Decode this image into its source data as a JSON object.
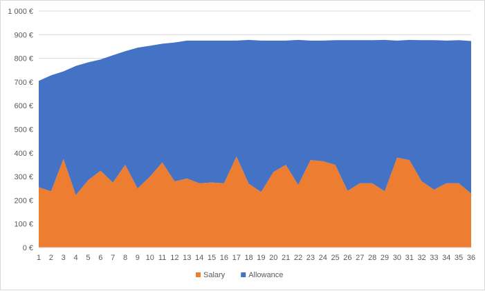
{
  "chart_data": {
    "type": "area",
    "stacked": true,
    "x": [
      "1",
      "2",
      "3",
      "4",
      "5",
      "6",
      "7",
      "8",
      "9",
      "10",
      "11",
      "12",
      "13",
      "14",
      "15",
      "16",
      "17",
      "18",
      "19",
      "20",
      "21",
      "22",
      "23",
      "24",
      "25",
      "26",
      "27",
      "28",
      "29",
      "30",
      "31",
      "32",
      "33",
      "34",
      "35",
      "36"
    ],
    "ylim": [
      0,
      1000
    ],
    "yticks": [
      0,
      100,
      200,
      300,
      400,
      500,
      600,
      700,
      800,
      900,
      1000
    ],
    "ytick_labels": [
      "0 €",
      "100 €",
      "200 €",
      "300 €",
      "400 €",
      "500 €",
      "600 €",
      "700 €",
      "800 €",
      "900 €",
      "1 000 €"
    ],
    "grid": true,
    "legend_position": "bottom",
    "series": [
      {
        "name": "Salary",
        "color": "#ED7D31",
        "values": [
          255,
          238,
          375,
          222,
          285,
          325,
          275,
          350,
          250,
          300,
          360,
          280,
          292,
          272,
          275,
          272,
          385,
          270,
          235,
          320,
          350,
          265,
          370,
          365,
          350,
          240,
          272,
          272,
          238,
          380,
          370,
          280,
          245,
          272,
          272,
          228
        ]
      },
      {
        "name": "Allowance",
        "color": "#4472C4",
        "values": [
          450,
          490,
          370,
          546,
          498,
          470,
          538,
          480,
          595,
          553,
          502,
          587,
          583,
          603,
          600,
          603,
          490,
          608,
          640,
          555,
          525,
          613,
          505,
          510,
          527,
          637,
          605,
          605,
          640,
          495,
          508,
          597,
          632,
          603,
          605,
          645
        ]
      }
    ]
  }
}
